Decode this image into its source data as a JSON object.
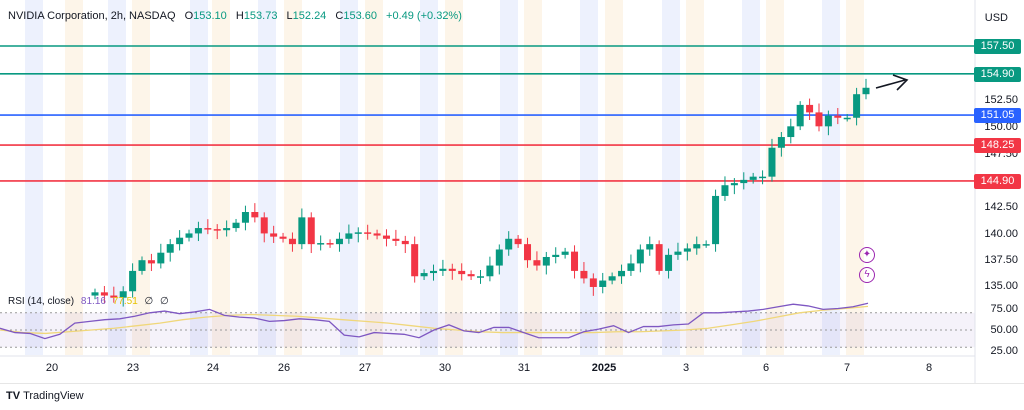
{
  "header": {
    "symbol": "NVIDIA Corporation, 2h, NASDAQ",
    "open_label": "O",
    "open": "153.10",
    "high_label": "H",
    "high": "153.73",
    "low_label": "L",
    "low": "152.24",
    "close_label": "C",
    "close": "153.60",
    "change": "+0.49 (+0.32%)",
    "currency": "USD"
  },
  "levels": [
    {
      "price": "157.50",
      "value": 157.5,
      "color": "#089981"
    },
    {
      "price": "154.90",
      "value": 154.9,
      "color": "#089981"
    },
    {
      "price": "151.05",
      "value": 151.05,
      "color": "#2962ff"
    },
    {
      "price": "148.25",
      "value": 148.25,
      "color": "#f23645"
    },
    {
      "price": "144.90",
      "value": 144.9,
      "color": "#f23645"
    }
  ],
  "price_axis": [
    "152.50",
    "150.00",
    "147.50",
    "142.50",
    "140.00",
    "137.50",
    "135.00"
  ],
  "rsi": {
    "label": "RSI (14, close)",
    "value": "81.16",
    "ma": "77.51",
    "z1": "∅",
    "z2": "∅",
    "axis": [
      "75.00",
      "50.00",
      "25.00"
    ]
  },
  "dates": [
    "20",
    "23",
    "24",
    "26",
    "27",
    "30",
    "31",
    "2025",
    "3",
    "6",
    "7",
    "8"
  ],
  "brand": "TradingView",
  "colors": {
    "up": "#089981",
    "down": "#f23645",
    "rsi": "#7e57c2",
    "rsi_ma": "#f0d77a"
  },
  "chart_data": {
    "type": "candlestick",
    "closes": [
      134.5,
      134.2,
      134,
      134.6,
      136.5,
      137.5,
      137.2,
      138.2,
      139,
      139.6,
      140,
      140.5,
      140.4,
      140.3,
      140.5,
      141,
      142,
      141.5,
      140,
      139.7,
      139.5,
      139,
      141.5,
      139,
      139.1,
      139,
      139.5,
      140,
      140.1,
      140,
      139.8,
      139.5,
      139.3,
      139,
      136,
      136.3,
      136.5,
      136.7,
      136.5,
      136.2,
      136,
      136,
      137,
      138.5,
      139.5,
      139,
      137.5,
      137,
      137.8,
      138,
      138.3,
      136.5,
      135.8,
      135,
      135.6,
      136,
      136.5,
      137.2,
      138.5,
      139,
      136.5,
      138,
      138.3,
      138.6,
      139,
      139,
      143.5,
      144.5,
      144.7,
      145,
      145.3,
      145.3,
      148,
      149,
      150,
      152,
      151.3,
      150,
      151,
      150.8,
      150.8,
      153,
      153.6
    ],
    "rsi_values": [
      52,
      47,
      46,
      40,
      45,
      58,
      60,
      62,
      63,
      66,
      70,
      72,
      69,
      71,
      74,
      67,
      65,
      64,
      60,
      61,
      63,
      62,
      60,
      44,
      42,
      47,
      46,
      45,
      41,
      50,
      56,
      49,
      47,
      53,
      53,
      47,
      41,
      41,
      41,
      48,
      51,
      55,
      47,
      54,
      54,
      56,
      57,
      70,
      70,
      71,
      72,
      74,
      77,
      80,
      78,
      74,
      75,
      77,
      81.16
    ],
    "rsi_ma_values": [
      50,
      47,
      46,
      48,
      50,
      52,
      55,
      58,
      62,
      65,
      67,
      68,
      67,
      66,
      64,
      62,
      60,
      58,
      55,
      52,
      50,
      48,
      47,
      47,
      47,
      47,
      47,
      48,
      48,
      49,
      50,
      52,
      56,
      60,
      65,
      70,
      73,
      75,
      77.51
    ]
  }
}
